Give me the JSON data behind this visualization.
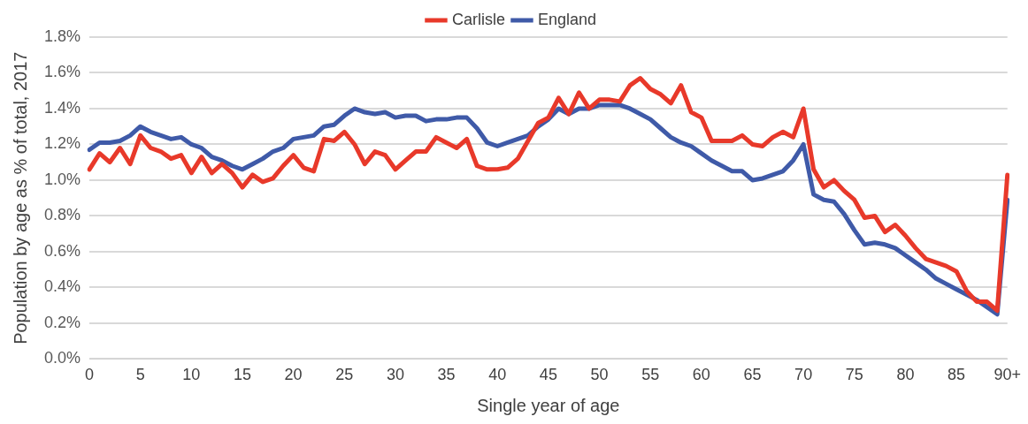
{
  "chart_data": {
    "type": "line",
    "xlabel": "Single year of age",
    "ylabel": "Population by age as % of total, 2017",
    "categories": [
      "0",
      null,
      null,
      null,
      null,
      "5",
      null,
      null,
      null,
      null,
      "10",
      null,
      null,
      null,
      null,
      "15",
      null,
      null,
      null,
      null,
      "20",
      null,
      null,
      null,
      null,
      "25",
      null,
      null,
      null,
      null,
      "30",
      null,
      null,
      null,
      null,
      "35",
      null,
      null,
      null,
      null,
      "40",
      null,
      null,
      null,
      null,
      "45",
      null,
      null,
      null,
      null,
      "50",
      null,
      null,
      null,
      null,
      "55",
      null,
      null,
      null,
      null,
      "60",
      null,
      null,
      null,
      null,
      "65",
      null,
      null,
      null,
      null,
      "70",
      null,
      null,
      null,
      null,
      "75",
      null,
      null,
      null,
      null,
      "80",
      null,
      null,
      null,
      null,
      "85",
      null,
      null,
      null,
      null,
      "90+"
    ],
    "series": [
      {
        "name": "Carlisle",
        "color": "#e8392a",
        "values": [
          1.06,
          1.15,
          1.1,
          1.18,
          1.09,
          1.25,
          1.18,
          1.16,
          1.12,
          1.14,
          1.04,
          1.13,
          1.04,
          1.09,
          1.04,
          0.96,
          1.03,
          0.99,
          1.01,
          1.08,
          1.14,
          1.07,
          1.05,
          1.23,
          1.22,
          1.27,
          1.2,
          1.09,
          1.16,
          1.14,
          1.06,
          1.11,
          1.16,
          1.16,
          1.24,
          1.21,
          1.18,
          1.23,
          1.08,
          1.06,
          1.06,
          1.07,
          1.12,
          1.22,
          1.32,
          1.35,
          1.46,
          1.37,
          1.49,
          1.4,
          1.45,
          1.45,
          1.44,
          1.53,
          1.57,
          1.51,
          1.48,
          1.43,
          1.53,
          1.38,
          1.35,
          1.22,
          1.22,
          1.22,
          1.25,
          1.2,
          1.19,
          1.24,
          1.27,
          1.24,
          1.4,
          1.06,
          0.96,
          1.0,
          0.94,
          0.89,
          0.79,
          0.8,
          0.71,
          0.75,
          0.69,
          0.62,
          0.56,
          0.54,
          0.52,
          0.49,
          0.38,
          0.32,
          0.32,
          0.27,
          1.03
        ]
      },
      {
        "name": "England",
        "color": "#3f5aa8",
        "values": [
          1.17,
          1.21,
          1.21,
          1.22,
          1.25,
          1.3,
          1.27,
          1.25,
          1.23,
          1.24,
          1.2,
          1.18,
          1.13,
          1.11,
          1.08,
          1.06,
          1.09,
          1.12,
          1.16,
          1.18,
          1.23,
          1.24,
          1.25,
          1.3,
          1.31,
          1.36,
          1.4,
          1.38,
          1.37,
          1.38,
          1.35,
          1.36,
          1.36,
          1.33,
          1.34,
          1.34,
          1.35,
          1.35,
          1.29,
          1.21,
          1.19,
          1.21,
          1.23,
          1.25,
          1.3,
          1.34,
          1.4,
          1.37,
          1.4,
          1.4,
          1.42,
          1.42,
          1.42,
          1.4,
          1.37,
          1.34,
          1.29,
          1.24,
          1.21,
          1.19,
          1.15,
          1.11,
          1.08,
          1.05,
          1.05,
          1.0,
          1.01,
          1.03,
          1.05,
          1.11,
          1.2,
          0.92,
          0.89,
          0.88,
          0.81,
          0.72,
          0.64,
          0.65,
          0.64,
          0.62,
          0.58,
          0.54,
          0.5,
          0.45,
          0.42,
          0.39,
          0.36,
          0.33,
          0.29,
          0.25,
          0.89
        ]
      }
    ],
    "ylim": [
      0,
      1.8
    ],
    "yticks": [
      {
        "value": 0,
        "label": "0.0%"
      },
      {
        "value": 0.2,
        "label": "0.2%"
      },
      {
        "value": 0.4,
        "label": "0.4%"
      },
      {
        "value": 0.6,
        "label": "0.6%"
      },
      {
        "value": 0.8,
        "label": "0.8%"
      },
      {
        "value": 1.0,
        "label": "1.0%"
      },
      {
        "value": 1.2,
        "label": "1.2%"
      },
      {
        "value": 1.4,
        "label": "1.4%"
      },
      {
        "value": 1.6,
        "label": "1.6%"
      },
      {
        "value": 1.8,
        "label": "1.8%"
      }
    ],
    "grid": "y",
    "legend": "top",
    "marker": "none",
    "line_style": "solid"
  }
}
